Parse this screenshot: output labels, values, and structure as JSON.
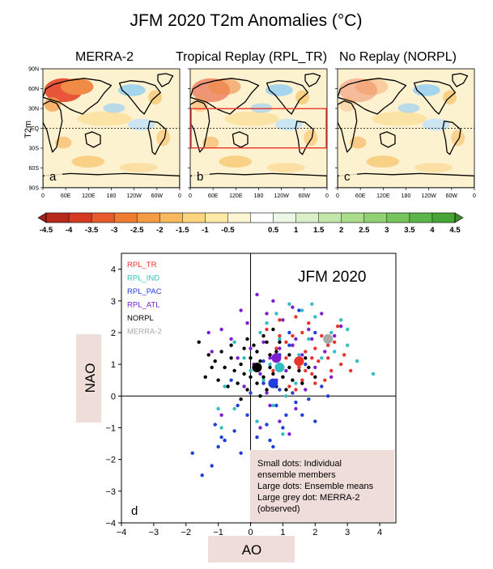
{
  "title": "JFM 2020 T2m Anomalies (°C)",
  "maps": {
    "ylabel": "T2m",
    "lat_ticks": [
      "90N",
      "60N",
      "30N",
      "EQ",
      "30S",
      "60S",
      "90S"
    ],
    "lon_ticks": [
      "0",
      "60E",
      "120E",
      "180",
      "120W",
      "60W",
      "0"
    ],
    "panels": [
      {
        "title": "MERRA-2",
        "letter": "a",
        "warm": "high",
        "box": false
      },
      {
        "title": "Tropical Replay (RPL_TR)",
        "letter": "b",
        "warm": "medium",
        "box": true
      },
      {
        "title": "No Replay (NORPL)",
        "letter": "c",
        "warm": "low",
        "box": false
      }
    ]
  },
  "colorbar": {
    "labels": [
      "-4.5",
      "-4",
      "-3.5",
      "-3",
      "-2.5",
      "-2",
      "-1.5",
      "-1",
      "-0.5",
      "0.5",
      "1",
      "1.5",
      "2",
      "2.5",
      "3",
      "3.5",
      "4",
      "4.5"
    ],
    "colors": [
      "#b8281d",
      "#d43a22",
      "#e85a2c",
      "#f07b33",
      "#f59a45",
      "#f8b85c",
      "#fbd47e",
      "#fde9a6",
      "#fef6d2",
      "#ffffff",
      "#edf7e6",
      "#d9f0c9",
      "#c2e7aa",
      "#a9dd8c",
      "#8fd173",
      "#75c45c",
      "#5cb548",
      "#47a537"
    ]
  },
  "chart_data": {
    "type": "scatter",
    "panel_letter": "d",
    "inset_title": "JFM 2020",
    "xlabel": "AO",
    "ylabel": "NAO",
    "xlim": [
      -4,
      4.5
    ],
    "ylim": [
      -4,
      4.5
    ],
    "xticks": [
      -4,
      -3,
      -2,
      -1,
      0,
      1,
      2,
      3,
      4
    ],
    "yticks": [
      -4,
      -3,
      -2,
      -1,
      0,
      1,
      2,
      3,
      4
    ],
    "legend": [
      {
        "name": "RPL_TR",
        "color": "#e8342a"
      },
      {
        "name": "RPL_IND",
        "color": "#2fbfc2"
      },
      {
        "name": "RPL_PAC",
        "color": "#1f3fd8"
      },
      {
        "name": "RPL_ATL",
        "color": "#7b1fd0"
      },
      {
        "name": "NORPL",
        "color": "#000000"
      },
      {
        "name": "MERRA-2",
        "color": "#a8a8a8"
      }
    ],
    "note": [
      "Small dots: Individual",
      "ensemble members",
      "Large dots: Ensemble means",
      "Large grey dot: MERRA-2",
      "(observed)"
    ],
    "series": [
      {
        "name": "RPL_TR",
        "color": "#e8342a",
        "points": [
          [
            0.5,
            2.1
          ],
          [
            0.9,
            1.9
          ],
          [
            1.3,
            1.6
          ],
          [
            1.6,
            2.0
          ],
          [
            2.0,
            1.5
          ],
          [
            2.4,
            1.2
          ],
          [
            2.8,
            1.0
          ],
          [
            1.1,
            1.2
          ],
          [
            1.5,
            0.9
          ],
          [
            1.9,
            0.7
          ],
          [
            2.3,
            0.5
          ],
          [
            1.7,
            1.4
          ],
          [
            2.6,
            1.7
          ],
          [
            0.7,
            0.8
          ],
          [
            1.2,
            0.3
          ],
          [
            2.1,
            1.1
          ],
          [
            2.5,
            0.8
          ],
          [
            1.8,
            2.3
          ],
          [
            1.4,
            2.5
          ],
          [
            0.8,
            1.5
          ],
          [
            2.9,
            1.3
          ],
          [
            1.0,
            0.9
          ],
          [
            2.2,
            1.9
          ],
          [
            1.6,
            0.5
          ],
          [
            0.6,
            1.3
          ],
          [
            2.7,
            2.2
          ],
          [
            1.3,
            1.9
          ],
          [
            1.9,
            1.2
          ],
          [
            2.4,
            1.6
          ],
          [
            0.9,
            2.4
          ],
          [
            1.1,
            1.7
          ],
          [
            1.7,
            0.8
          ],
          [
            2.0,
            0.4
          ],
          [
            3.1,
            0.8
          ],
          [
            1.4,
            0.2
          ]
        ],
        "mean": [
          1.5,
          1.1
        ]
      },
      {
        "name": "RPL_IND",
        "color": "#2fbfc2",
        "points": [
          [
            0.3,
            2.0
          ],
          [
            0.8,
            2.6
          ],
          [
            1.2,
            2.9
          ],
          [
            1.6,
            2.7
          ],
          [
            2.0,
            2.5
          ],
          [
            2.5,
            2.0
          ],
          [
            3.0,
            1.6
          ],
          [
            3.3,
            1.1
          ],
          [
            3.8,
            0.7
          ],
          [
            0.2,
            1.4
          ],
          [
            0.6,
            1.0
          ],
          [
            1.0,
            0.6
          ],
          [
            1.4,
            0.4
          ],
          [
            0.9,
            1.8
          ],
          [
            1.8,
            1.8
          ],
          [
            2.2,
            1.2
          ],
          [
            2.8,
            2.4
          ],
          [
            0.4,
            0.5
          ],
          [
            1.1,
            0.0
          ],
          [
            0.0,
            0.8
          ],
          [
            -0.2,
            1.2
          ],
          [
            0.7,
            -0.3
          ],
          [
            1.9,
            2.9
          ],
          [
            2.6,
            1.4
          ],
          [
            -0.5,
            1.7
          ],
          [
            -0.8,
            0.3
          ],
          [
            0.5,
            2.3
          ],
          [
            1.5,
            1.3
          ],
          [
            -0.5,
            -0.4
          ],
          [
            0.2,
            -0.8
          ],
          [
            1.0,
            -1.2
          ],
          [
            -1.0,
            -0.4
          ],
          [
            -0.9,
            -1.0
          ],
          [
            3.0,
            2.1
          ]
        ],
        "mean": [
          0.9,
          0.9
        ]
      },
      {
        "name": "RPL_PAC",
        "color": "#1f3fd8",
        "points": [
          [
            0.8,
            -0.3
          ],
          [
            1.1,
            -0.6
          ],
          [
            1.4,
            -0.2
          ],
          [
            0.5,
            -0.9
          ],
          [
            0.2,
            -1.3
          ],
          [
            -0.1,
            -0.6
          ],
          [
            -0.3,
            -1.8
          ],
          [
            -0.5,
            -1.1
          ],
          [
            -0.9,
            -1.3
          ],
          [
            -1.2,
            -2.2
          ],
          [
            -1.1,
            -0.9
          ],
          [
            0.4,
            0.4
          ],
          [
            0.9,
            0.2
          ],
          [
            1.3,
            0.1
          ],
          [
            1.8,
            -0.1
          ],
          [
            2.2,
            0.3
          ],
          [
            0.0,
            0.1
          ],
          [
            -0.4,
            -0.3
          ],
          [
            0.7,
            -1.6
          ],
          [
            1.0,
            -1.0
          ],
          [
            -0.8,
            -1.4
          ],
          [
            -1.0,
            -1.6
          ],
          [
            1.6,
            -0.6
          ],
          [
            2.0,
            -0.8
          ],
          [
            0.3,
            -2.1
          ],
          [
            0.6,
            -1.4
          ],
          [
            0.9,
            1.3
          ],
          [
            1.2,
            1.6
          ],
          [
            1.7,
            1.0
          ],
          [
            -0.6,
            0.5
          ],
          [
            0.4,
            1.1
          ],
          [
            2.4,
            0.0
          ],
          [
            1.2,
            2.0
          ],
          [
            2.0,
            2.0
          ],
          [
            1.5,
            2.7
          ],
          [
            -1.8,
            -1.8
          ],
          [
            -1.5,
            -2.5
          ]
        ],
        "mean": [
          0.7,
          0.4
        ]
      },
      {
        "name": "RPL_ATL",
        "color": "#7b1fd0",
        "points": [
          [
            -0.1,
            2.3
          ],
          [
            0.5,
            2.6
          ],
          [
            1.0,
            2.4
          ],
          [
            0.7,
            3.0
          ],
          [
            1.3,
            2.8
          ],
          [
            0.2,
            3.2
          ],
          [
            0.4,
            1.7
          ],
          [
            0.9,
            1.5
          ],
          [
            1.4,
            1.8
          ],
          [
            1.8,
            2.1
          ],
          [
            2.2,
            2.6
          ],
          [
            2.8,
            2.2
          ],
          [
            -0.6,
            1.8
          ],
          [
            -0.9,
            2.1
          ],
          [
            -0.4,
            1.2
          ],
          [
            0.0,
            1.5
          ],
          [
            0.6,
            1.2
          ],
          [
            1.1,
            0.8
          ],
          [
            1.6,
            1.3
          ],
          [
            2.0,
            0.9
          ],
          [
            2.5,
            0.6
          ],
          [
            -0.8,
            0.9
          ],
          [
            -1.2,
            1.4
          ],
          [
            0.3,
            0.7
          ],
          [
            0.8,
            0.5
          ],
          [
            1.4,
            -0.4
          ],
          [
            -0.2,
            0.3
          ],
          [
            0.5,
            0.1
          ],
          [
            1.9,
            1.8
          ],
          [
            0.1,
            1.0
          ],
          [
            -0.3,
            2.7
          ],
          [
            2.3,
            1.4
          ],
          [
            1.7,
            0.2
          ],
          [
            0.6,
            -0.3
          ],
          [
            0.9,
            -0.8
          ],
          [
            1.2,
            -1.2
          ],
          [
            0.3,
            -1.0
          ],
          [
            -0.9,
            -0.6
          ],
          [
            1.3,
            1.6
          ],
          [
            2.6,
            1.9
          ],
          [
            -1.3,
            2.0
          ]
        ],
        "mean": [
          0.8,
          1.2
        ]
      },
      {
        "name": "NORPL",
        "color": "#000000",
        "points": [
          [
            -1.6,
            1.7
          ],
          [
            -1.3,
            1.3
          ],
          [
            -1.1,
            1.1
          ],
          [
            -0.9,
            1.4
          ],
          [
            -0.8,
            0.9
          ],
          [
            -0.6,
            1.2
          ],
          [
            -0.5,
            0.8
          ],
          [
            -0.3,
            1.0
          ],
          [
            -0.2,
            0.7
          ],
          [
            0.0,
            1.2
          ],
          [
            0.1,
            0.9
          ],
          [
            0.3,
            1.1
          ],
          [
            0.4,
            0.6
          ],
          [
            0.6,
            0.9
          ],
          [
            0.7,
            0.7
          ],
          [
            0.9,
            1.0
          ],
          [
            1.0,
            0.6
          ],
          [
            1.2,
            0.9
          ],
          [
            1.3,
            0.5
          ],
          [
            1.5,
            0.8
          ],
          [
            1.6,
            0.4
          ],
          [
            1.8,
            0.9
          ],
          [
            2.0,
            0.6
          ],
          [
            -1.4,
            0.6
          ],
          [
            -1.0,
            0.5
          ],
          [
            -0.7,
            0.3
          ],
          [
            -0.4,
            0.4
          ],
          [
            -0.1,
            0.2
          ],
          [
            0.2,
            0.4
          ],
          [
            0.5,
            0.2
          ],
          [
            0.8,
            0.3
          ],
          [
            1.1,
            0.2
          ],
          [
            -0.6,
            1.6
          ],
          [
            -0.2,
            1.5
          ],
          [
            0.2,
            1.4
          ],
          [
            0.5,
            1.7
          ],
          [
            0.8,
            1.4
          ],
          [
            1.2,
            1.3
          ],
          [
            -1.2,
            0.9
          ],
          [
            0.0,
            0.6
          ],
          [
            0.3,
            0.0
          ],
          [
            -0.3,
            -0.1
          ],
          [
            0.6,
            1.3
          ],
          [
            1.4,
            1.1
          ],
          [
            0.4,
            1.9
          ],
          [
            -0.1,
            1.8
          ],
          [
            0.9,
            1.7
          ],
          [
            1.7,
            1.2
          ],
          [
            0.1,
            1.6
          ],
          [
            0.7,
            2.1
          ]
        ],
        "mean": [
          0.2,
          0.9
        ]
      },
      {
        "name": "MERRA-2",
        "color": "#a8a8a8",
        "points": [],
        "mean": [
          2.4,
          1.8
        ]
      }
    ]
  }
}
